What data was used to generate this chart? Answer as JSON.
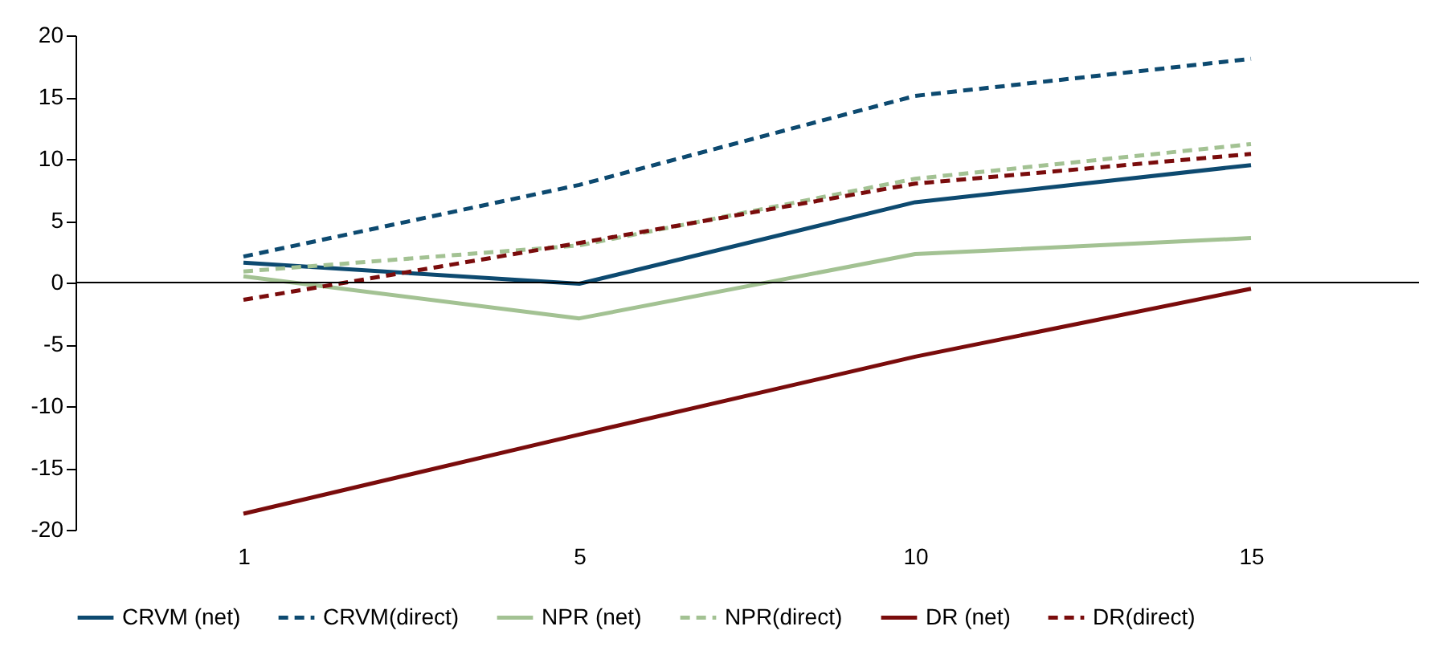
{
  "chart_data": {
    "type": "line",
    "categories": [
      "1",
      "5",
      "10",
      "15"
    ],
    "ylim": [
      -20,
      20
    ],
    "yticks": [
      -20,
      -15,
      -10,
      -5,
      0,
      5,
      10,
      15,
      20
    ],
    "grid": false,
    "ref_lines": [
      {
        "axis": "y",
        "value": 0,
        "color": "#000000",
        "line_style": "solid"
      }
    ],
    "legend": "bottom",
    "marker": "none",
    "series": [
      {
        "name": "CRVM (net)",
        "color": "#0d4a70",
        "line_style": "solid",
        "values": [
          1.6,
          -0.1,
          6.5,
          9.5
        ]
      },
      {
        "name": "CRVM(direct)",
        "color": "#0d4a70",
        "line_style": "dashed",
        "values": [
          2.1,
          7.9,
          15.1,
          18.1
        ]
      },
      {
        "name": "NPR (net)",
        "color": "#a3c293",
        "line_style": "solid",
        "values": [
          0.5,
          -2.9,
          2.3,
          3.6
        ]
      },
      {
        "name": "NPR(direct)",
        "color": "#a3c293",
        "line_style": "dashed",
        "values": [
          0.9,
          3.0,
          8.4,
          11.2
        ]
      },
      {
        "name": "DR (net)",
        "color": "#7a0c0c",
        "line_style": "solid",
        "values": [
          -18.7,
          -12.3,
          -6.0,
          -0.5
        ]
      },
      {
        "name": "DR(direct)",
        "color": "#7a0c0c",
        "line_style": "dashed",
        "values": [
          -1.4,
          3.2,
          8.0,
          10.4
        ]
      }
    ]
  }
}
